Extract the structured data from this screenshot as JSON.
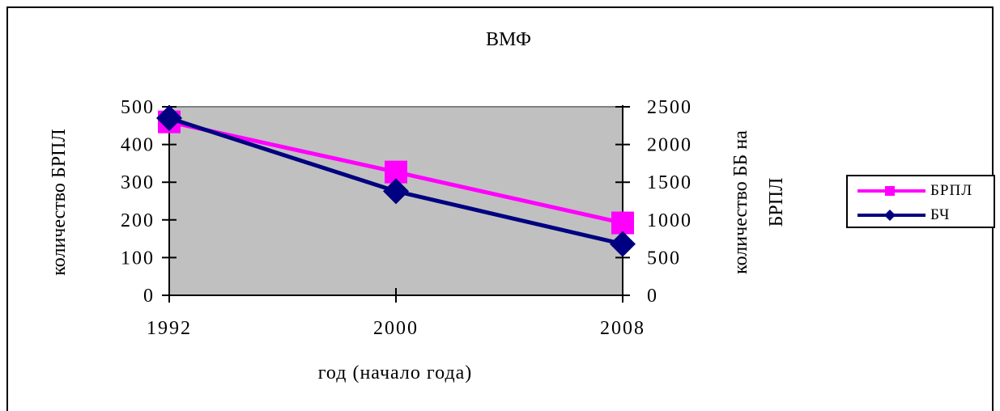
{
  "chart_data": {
    "type": "line",
    "title": "ВМФ",
    "xlabel": "год (начало года)",
    "ylabel_left": "количество БРПЛ",
    "ylabel_right_line1": "количество ББ на",
    "ylabel_right_line2": "БРПЛ",
    "categories": [
      "1992",
      "2000",
      "2008"
    ],
    "y_left": {
      "range": [
        0,
        500
      ],
      "ticks": [
        0,
        100,
        200,
        300,
        400,
        500
      ],
      "tick_labels": [
        "0",
        "100",
        "200",
        "300",
        "400",
        "500"
      ]
    },
    "y_right": {
      "range": [
        0,
        2500
      ],
      "ticks": [
        0,
        500,
        1000,
        1500,
        2000,
        2500
      ],
      "tick_labels": [
        "0",
        "500",
        "1000",
        "1500",
        "2000",
        "2500"
      ]
    },
    "series": [
      {
        "name": "БРПЛ",
        "axis": "left",
        "values": [
          460,
          327,
          192
        ],
        "color": "#ff00ff",
        "marker": "square"
      },
      {
        "name": "БЧ",
        "axis": "right",
        "values": [
          2350,
          1380,
          680
        ],
        "color": "#000080",
        "marker": "diamond"
      }
    ],
    "plot_background": "#c0c0c0",
    "legend_position": "right"
  }
}
